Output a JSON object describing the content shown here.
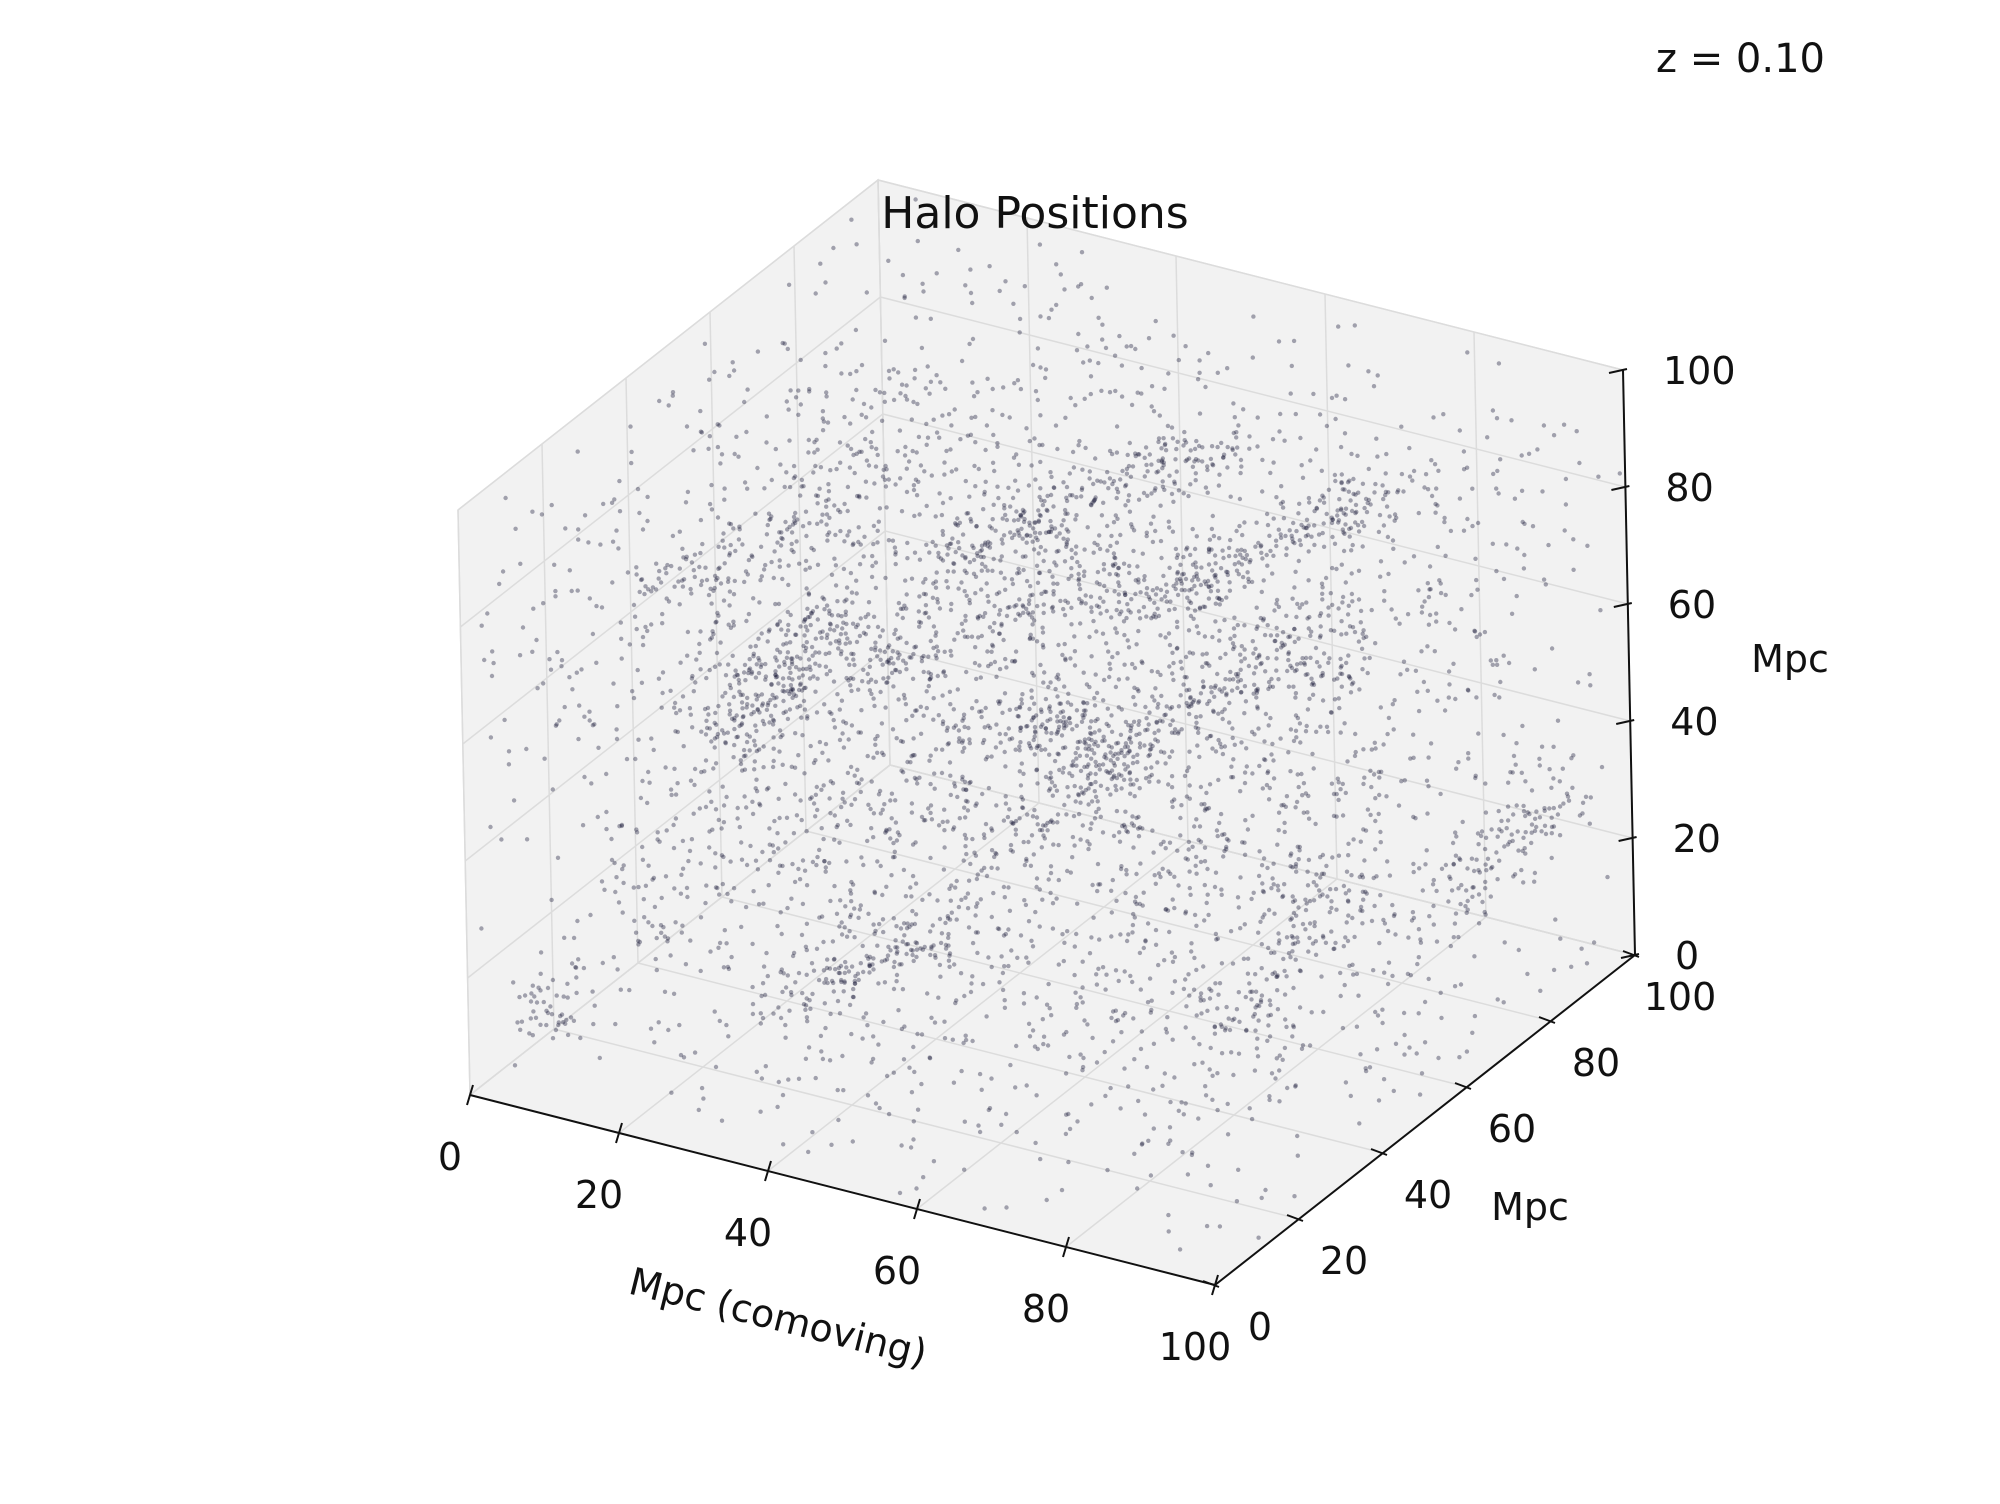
{
  "chart_data": {
    "type": "scatter",
    "projection": "3d",
    "title": "Halo Positions",
    "annotation": "z = 0.10",
    "xlabel": "Mpc (comoving)",
    "ylabel": "Mpc",
    "zlabel": "Mpc",
    "xlim": [
      0,
      100
    ],
    "ylim": [
      0,
      100
    ],
    "zlim": [
      0,
      100
    ],
    "x_ticks": [
      "0",
      "20",
      "40",
      "60",
      "80",
      "100"
    ],
    "y_ticks": [
      "0",
      "20",
      "40",
      "60",
      "80",
      "100"
    ],
    "z_ticks": [
      "0",
      "20",
      "40",
      "60",
      "80",
      "100"
    ],
    "grid": true,
    "marker_color": "#1a1a3a",
    "pane_color": "#f2f2f2",
    "series": [
      {
        "points": [
          [
            8,
            55,
            40
          ],
          [
            9,
            58,
            42
          ],
          [
            10,
            60,
            44
          ],
          [
            8,
            52,
            38
          ],
          [
            11,
            62,
            46
          ],
          [
            9,
            57,
            41
          ],
          [
            12,
            64,
            47
          ],
          [
            10,
            59,
            39
          ],
          [
            7,
            50,
            36
          ],
          [
            13,
            66,
            49
          ],
          [
            25,
            70,
            60
          ],
          [
            28,
            72,
            62
          ],
          [
            31,
            74,
            64
          ],
          [
            34,
            76,
            66
          ],
          [
            37,
            78,
            68
          ],
          [
            40,
            80,
            70
          ],
          [
            43,
            82,
            72
          ],
          [
            46,
            84,
            74
          ],
          [
            49,
            86,
            76
          ],
          [
            52,
            88,
            78
          ],
          [
            55,
            60,
            65
          ],
          [
            58,
            62,
            68
          ],
          [
            61,
            64,
            70
          ],
          [
            64,
            66,
            72
          ],
          [
            67,
            68,
            75
          ],
          [
            70,
            70,
            78
          ],
          [
            73,
            72,
            80
          ],
          [
            76,
            74,
            82
          ],
          [
            79,
            76,
            84
          ],
          [
            82,
            78,
            86
          ],
          [
            60,
            30,
            50
          ],
          [
            62,
            34,
            52
          ],
          [
            64,
            38,
            55
          ],
          [
            66,
            42,
            58
          ],
          [
            68,
            46,
            60
          ],
          [
            70,
            50,
            62
          ],
          [
            72,
            54,
            64
          ],
          [
            74,
            58,
            66
          ],
          [
            76,
            62,
            68
          ],
          [
            78,
            66,
            70
          ],
          [
            90,
            20,
            30
          ],
          [
            92,
            24,
            34
          ],
          [
            94,
            28,
            38
          ],
          [
            96,
            32,
            42
          ],
          [
            98,
            36,
            46
          ],
          [
            15,
            20,
            80
          ],
          [
            18,
            25,
            82
          ],
          [
            21,
            30,
            84
          ],
          [
            24,
            35,
            86
          ],
          [
            27,
            40,
            88
          ],
          [
            35,
            15,
            20
          ],
          [
            38,
            18,
            22
          ],
          [
            41,
            21,
            24
          ],
          [
            44,
            24,
            26
          ],
          [
            47,
            27,
            28
          ],
          [
            50,
            50,
            50
          ],
          [
            52,
            52,
            52
          ],
          [
            48,
            49,
            51
          ],
          [
            51,
            47,
            53
          ],
          [
            53,
            55,
            49
          ],
          [
            20,
            90,
            35
          ],
          [
            23,
            92,
            38
          ],
          [
            26,
            94,
            41
          ],
          [
            29,
            96,
            44
          ],
          [
            32,
            98,
            47
          ],
          [
            85,
            85,
            15
          ],
          [
            87,
            88,
            18
          ],
          [
            89,
            91,
            21
          ],
          [
            91,
            94,
            24
          ],
          [
            93,
            97,
            27
          ],
          [
            5,
            10,
            10
          ],
          [
            6,
            12,
            12
          ],
          [
            45,
            70,
            30
          ],
          [
            47,
            72,
            33
          ],
          [
            75,
            40,
            90
          ],
          [
            77,
            42,
            92
          ],
          [
            30,
            45,
            55
          ],
          [
            33,
            47,
            57
          ],
          [
            65,
            85,
            45
          ],
          [
            68,
            88,
            47
          ]
        ]
      }
    ]
  }
}
